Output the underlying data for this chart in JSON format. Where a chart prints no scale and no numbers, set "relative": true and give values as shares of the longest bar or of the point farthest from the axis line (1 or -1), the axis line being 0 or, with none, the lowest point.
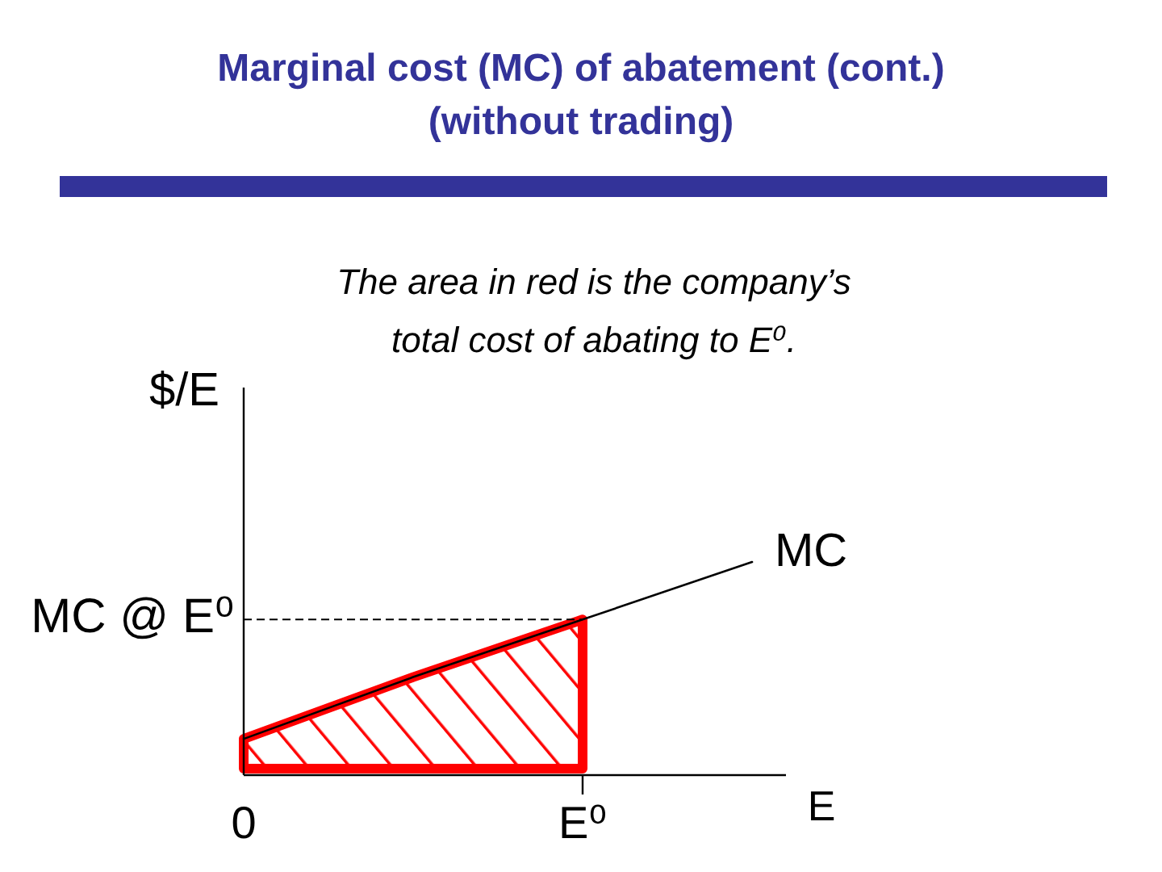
{
  "chart_data": {
    "type": "line",
    "title": "Marginal cost (MC) of abatement (cont.)",
    "subtitle": "(without trading)",
    "xlabel": "E",
    "ylabel": "$/E",
    "annotations": [
      "The area in red is the company’s total cost of abating to E⁰."
    ],
    "categories": [
      "0",
      null,
      "E⁰",
      null
    ],
    "relative": true,
    "series": [
      {
        "name": "MC",
        "color": "#000000",
        "values": [
          0.17,
          0.46,
          0.73,
          1
        ]
      },
      {
        "type": "area",
        "color": "#ff0000",
        "values": [
          0.17,
          0.46,
          0.73,
          null
        ]
      }
    ],
    "ref_lines": [
      {
        "axis": "y",
        "value": 0.73,
        "label": "MC @ E⁰",
        "color": "#000000",
        "line_style": "dashed"
      }
    ]
  }
}
